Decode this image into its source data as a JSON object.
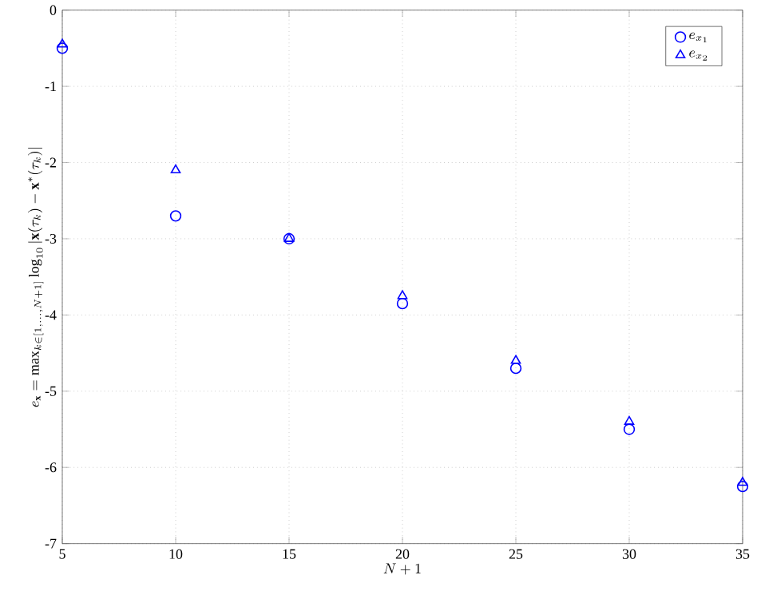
{
  "chart_data": {
    "type": "scatter",
    "xlabel": "N+1",
    "ylabel": "e_{\\mathbf{x}} = \\max_{k\\in[1,\\ldots,N+1]} \\log_{10}\\left|\\mathbf{x}(\\tau_k) - \\mathbf{x}^{*}(\\tau_k)\\right|",
    "x": [
      5,
      10,
      15,
      20,
      25,
      30,
      35
    ],
    "series": [
      {
        "name": "e_{x_1}",
        "color": "#0000ff",
        "marker": "circle",
        "values": [
          -0.5,
          -2.7,
          -3.0,
          -3.85,
          -4.7,
          -5.5,
          -6.25
        ]
      },
      {
        "name": "e_{x_2}",
        "color": "#0000ff",
        "marker": "triangle",
        "values": [
          -0.45,
          -2.1,
          -3.0,
          -3.75,
          -4.6,
          -5.4,
          -6.2
        ]
      }
    ],
    "xlim": [
      5,
      35
    ],
    "ylim": [
      -7,
      0
    ],
    "xticks": [
      5,
      10,
      15,
      20,
      25,
      30,
      35
    ],
    "yticks": [
      -7,
      -6,
      -5,
      -4,
      -3,
      -2,
      -1,
      0
    ],
    "grid": true,
    "legend": "top right",
    "line_style": "none"
  }
}
